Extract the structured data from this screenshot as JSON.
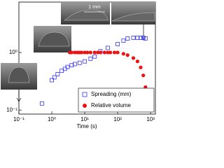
{
  "chart_data": {
    "type": "scatter",
    "xlabel": "Time (s)",
    "xlog": true,
    "ylog": true,
    "xlim": [
      0.1,
      1400
    ],
    "ylim": [
      0.085,
      7.5
    ],
    "xticks": [
      {
        "value": 0.1,
        "label": "10⁻¹"
      },
      {
        "value": 1,
        "label": "10⁰"
      },
      {
        "value": 10,
        "label": "10¹"
      },
      {
        "value": 100,
        "label": "10²"
      },
      {
        "value": 1000,
        "label": "10³"
      }
    ],
    "yticks": [
      {
        "value": 0.1,
        "label": "10⁻¹"
      },
      {
        "value": 1,
        "label": "10⁰"
      }
    ],
    "legend": "lower right",
    "scale_label": "1 mm",
    "series": [
      {
        "name": "Spreading (mm)",
        "color": "#3333ff",
        "marker": "square",
        "x": [
          0.5,
          1.0,
          1.2,
          1.5,
          2,
          2.5,
          3,
          4,
          5,
          7,
          10,
          15,
          20,
          30,
          50,
          100,
          150,
          200,
          300,
          400,
          500,
          600,
          700
        ],
        "values": [
          0.13,
          0.33,
          0.37,
          0.42,
          0.48,
          0.52,
          0.56,
          0.6,
          0.63,
          0.66,
          0.7,
          0.78,
          0.85,
          1.05,
          1.2,
          1.4,
          1.6,
          1.75,
          1.8,
          1.8,
          1.8,
          1.8,
          1.75
        ]
      },
      {
        "name": "Relative volume",
        "color": "#ee1111",
        "marker": "circle",
        "x": [
          3.5,
          4,
          5,
          6,
          7,
          8,
          10,
          12,
          15,
          20,
          25,
          30,
          40,
          50,
          60,
          80,
          100,
          150,
          200,
          300,
          400,
          500,
          600,
          700,
          800
        ],
        "values": [
          1,
          1,
          1,
          1,
          1,
          1,
          1,
          1,
          1,
          1,
          1,
          1,
          1,
          1,
          1,
          1,
          1,
          0.95,
          0.9,
          0.8,
          0.7,
          0.55,
          0.4,
          0.25,
          0.15
        ]
      }
    ]
  }
}
